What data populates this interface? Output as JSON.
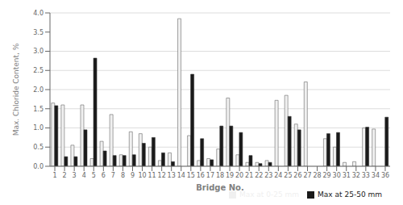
{
  "chart_data": {
    "type": "bar",
    "categories": [
      1,
      2,
      3,
      4,
      5,
      6,
      7,
      8,
      9,
      10,
      11,
      12,
      13,
      14,
      15,
      16,
      17,
      18,
      19,
      20,
      21,
      22,
      23,
      24,
      25,
      26,
      27,
      28,
      29,
      30,
      31,
      32,
      33,
      34,
      36
    ],
    "series": [
      {
        "name": "Max at 0-25 mm",
        "color": "#f0f0f0",
        "values": [
          1.65,
          1.6,
          0.55,
          1.6,
          0.2,
          0.65,
          1.35,
          0.3,
          0.9,
          0.85,
          0.5,
          0.15,
          0.35,
          3.85,
          0.8,
          0.15,
          0.2,
          0.45,
          1.78,
          0.3,
          0.1,
          0.1,
          0.15,
          1.72,
          1.85,
          1.1,
          2.2,
          0.0,
          0.72,
          0.5,
          0.1,
          0.12,
          1.0,
          0.97,
          0.0
        ]
      },
      {
        "name": "Max at 25-50 mm",
        "color": "#1a1a1a",
        "values": [
          1.58,
          0.25,
          0.25,
          0.95,
          2.82,
          0.4,
          0.28,
          0.28,
          0.3,
          0.6,
          0.75,
          0.35,
          0.12,
          0.0,
          2.4,
          0.72,
          0.17,
          1.05,
          1.05,
          0.88,
          0.28,
          0.07,
          0.1,
          0.0,
          1.3,
          0.95,
          0.0,
          0.0,
          0.85,
          0.88,
          0.0,
          0.0,
          1.02,
          0.0,
          1.28
        ]
      }
    ],
    "xlabel": "Bridge No.",
    "ylabel": "Max. Chloride Content, %",
    "ylim": [
      0.0,
      4.0
    ],
    "yticks": [
      {
        "value": 0,
        "label": "0.0"
      },
      0.5,
      {
        "value": 1,
        "label": "1.0"
      },
      1.5,
      {
        "value": 2,
        "label": "2.0"
      },
      2.5,
      {
        "value": 3,
        "label": "3.0"
      },
      3.5,
      {
        "value": 4,
        "label": "4.0"
      }
    ],
    "grid": true,
    "legend": "lower right"
  }
}
